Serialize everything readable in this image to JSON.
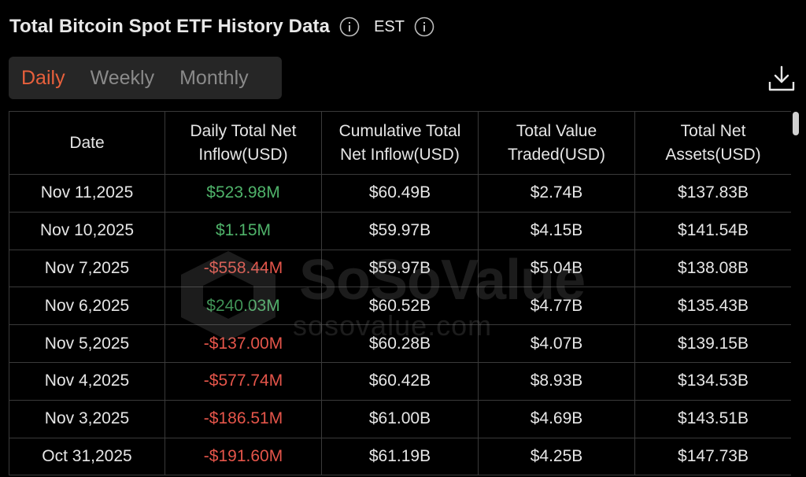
{
  "header": {
    "title": "Total Bitcoin Spot ETF History Data",
    "timezone": "EST"
  },
  "tabs": [
    {
      "label": "Daily",
      "active": true
    },
    {
      "label": "Weekly",
      "active": false
    },
    {
      "label": "Monthly",
      "active": false
    }
  ],
  "table": {
    "headers": [
      "Date",
      "Daily Total Net Inflow(USD)",
      "Cumulative Total Net Inflow(USD)",
      "Total Value Traded(USD)",
      "Total Net Assets(USD)"
    ],
    "rows": [
      {
        "date": "Nov 11,2025",
        "daily": "$523.98M",
        "daily_sign": "pos",
        "cumulative": "$60.49B",
        "traded": "$2.74B",
        "assets": "$137.83B"
      },
      {
        "date": "Nov 10,2025",
        "daily": "$1.15M",
        "daily_sign": "pos",
        "cumulative": "$59.97B",
        "traded": "$4.15B",
        "assets": "$141.54B"
      },
      {
        "date": "Nov 7,2025",
        "daily": "-$558.44M",
        "daily_sign": "neg",
        "cumulative": "$59.97B",
        "traded": "$5.04B",
        "assets": "$138.08B"
      },
      {
        "date": "Nov 6,2025",
        "daily": "$240.03M",
        "daily_sign": "pos",
        "cumulative": "$60.52B",
        "traded": "$4.77B",
        "assets": "$135.43B"
      },
      {
        "date": "Nov 5,2025",
        "daily": "-$137.00M",
        "daily_sign": "neg",
        "cumulative": "$60.28B",
        "traded": "$4.07B",
        "assets": "$139.15B"
      },
      {
        "date": "Nov 4,2025",
        "daily": "-$577.74M",
        "daily_sign": "neg",
        "cumulative": "$60.42B",
        "traded": "$8.93B",
        "assets": "$134.53B"
      },
      {
        "date": "Nov 3,2025",
        "daily": "-$186.51M",
        "daily_sign": "neg",
        "cumulative": "$61.00B",
        "traded": "$4.69B",
        "assets": "$143.51B"
      },
      {
        "date": "Oct 31,2025",
        "daily": "-$191.60M",
        "daily_sign": "neg",
        "cumulative": "$61.19B",
        "traded": "$4.25B",
        "assets": "$147.73B"
      }
    ]
  },
  "watermark": {
    "brand": "SoSoValue",
    "domain": "sosovalue.com"
  },
  "colors": {
    "accent": "#e8603c",
    "positive": "#4fb36a",
    "negative": "#e5554a",
    "background": "#000000",
    "tab_bg": "#262626"
  },
  "icons": {
    "info": "info-circle-icon",
    "download": "download-icon"
  }
}
